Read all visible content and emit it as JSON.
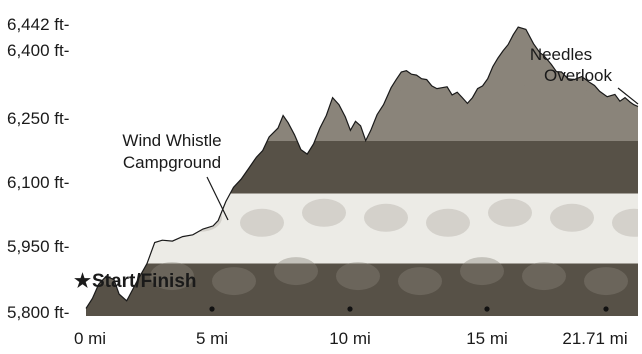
{
  "chart_data": {
    "type": "area",
    "title": "",
    "xlabel": "",
    "ylabel": "",
    "x_unit": "mi",
    "y_unit": "ft",
    "xlim": [
      0,
      21.71
    ],
    "ylim": [
      5800,
      6442
    ],
    "x_ticks": [
      {
        "value": 0,
        "label": "0 mi"
      },
      {
        "value": 5,
        "label": "5 mi"
      },
      {
        "value": 10,
        "label": "10 mi"
      },
      {
        "value": 15,
        "label": "15 mi"
      },
      {
        "value": 21.71,
        "label": "21.71 mi"
      }
    ],
    "y_ticks": [
      {
        "value": 6442,
        "label": "6,442 ft-"
      },
      {
        "value": 6400,
        "label": "6,400 ft-"
      },
      {
        "value": 6250,
        "label": "6,250 ft-"
      },
      {
        "value": 6100,
        "label": "6,100 ft-"
      },
      {
        "value": 5950,
        "label": "5,950 ft-"
      },
      {
        "value": 5800,
        "label": "5,800 ft-"
      }
    ],
    "mile_markers": [
      5,
      10,
      15,
      20
    ],
    "series": [
      {
        "x": [
          0,
          0.25,
          0.5,
          0.8,
          1.1,
          1.3,
          1.6,
          2.0,
          2.4,
          2.7,
          3.0,
          3.4,
          3.8,
          4.2,
          4.6,
          5.0,
          5.2,
          5.5,
          5.8,
          6.1,
          6.4,
          6.7,
          6.95,
          7.2,
          7.55,
          7.75,
          7.95,
          8.2,
          8.45,
          8.7,
          8.95,
          9.2,
          9.45,
          9.7,
          9.95,
          10.2,
          10.4,
          10.6,
          10.8,
          11.0,
          11.2,
          11.45,
          11.7,
          12.0,
          12.2,
          12.4,
          12.6,
          12.8,
          13.0,
          13.2,
          13.4,
          13.6,
          13.8,
          14.0,
          14.2,
          14.4,
          14.6,
          14.8,
          15.0,
          15.2,
          15.4,
          15.6,
          15.8,
          16.0,
          16.2,
          16.4,
          16.6,
          16.8,
          17.0,
          17.3,
          17.6,
          17.85,
          18.0,
          18.15,
          18.3,
          18.5,
          18.7,
          18.95,
          19.2,
          19.5,
          19.8,
          20.0,
          20.2,
          20.5,
          20.8,
          21.0,
          21.2,
          21.4,
          21.55,
          21.71
        ],
        "y": [
          5808,
          5830,
          5862,
          5880,
          5872,
          5840,
          5825,
          5868,
          5908,
          5955,
          5960,
          5958,
          5968,
          5972,
          5985,
          5992,
          6004,
          6046,
          6078,
          6096,
          6120,
          6145,
          6160,
          6190,
          6210,
          6238,
          6222,
          6195,
          6162,
          6152,
          6175,
          6210,
          6238,
          6278,
          6262,
          6235,
          6205,
          6225,
          6215,
          6182,
          6205,
          6240,
          6262,
          6300,
          6318,
          6335,
          6338,
          6330,
          6328,
          6320,
          6318,
          6304,
          6298,
          6300,
          6302,
          6284,
          6290,
          6278,
          6265,
          6278,
          6298,
          6304,
          6320,
          6347,
          6366,
          6382,
          6396,
          6418,
          6435,
          6430,
          6398,
          6378,
          6372,
          6362,
          6352,
          6336,
          6335,
          6320,
          6318,
          6325,
          6312,
          6305,
          6292,
          6280,
          6285,
          6270,
          6278,
          6268,
          6262,
          6258
        ]
      }
    ],
    "annotations": [
      {
        "text_lines": [
          "Wind Whistle",
          "Campground"
        ],
        "x": 7.0,
        "y": 6160
      },
      {
        "text_lines": [
          "Needles",
          "Overlook"
        ],
        "x": 21.71,
        "y": 6330
      },
      {
        "text_lines": [
          "Start/Finish"
        ],
        "x": 0,
        "y": 5808
      }
    ],
    "grid": false,
    "legend": "none"
  },
  "labels": {
    "start_finish": "Start/Finish",
    "start_star": "★",
    "wind_whistle_line1": "Wind Whistle",
    "wind_whistle_line2": "Campground",
    "needles_line1": "Needles",
    "needles_line2": "Overlook"
  },
  "colors": {
    "terrain_dark": "#575147",
    "terrain_light": "#ecebe6",
    "terrain_mid": "#8a847a",
    "outline": "#1a1a1a",
    "background": "#ffffff"
  }
}
